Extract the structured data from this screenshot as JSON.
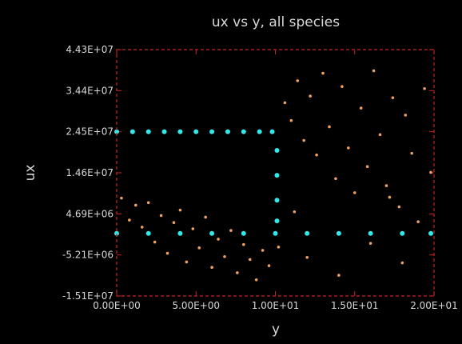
{
  "chart_data": {
    "type": "scatter",
    "title": "ux vs y, all species",
    "xlabel": "y",
    "ylabel": "ux",
    "xlim": [
      0,
      20.0
    ],
    "ylim": [
      -15100000,
      44300000
    ],
    "x_tick_values": [
      0,
      5.0,
      10.0,
      15.0,
      20.0
    ],
    "x_tick_labels": [
      "0.00E+00",
      "5.00E+00",
      "1.00E+01",
      "1.50E+01",
      "2.00E+01"
    ],
    "y_tick_values": [
      -15100000,
      -5210000,
      4690000,
      14600000,
      24500000,
      34400000,
      44300000
    ],
    "y_tick_labels": [
      "-1.51E+07",
      "-5.21E+06",
      "4.69E+06",
      "1.46E+07",
      "2.45E+07",
      "3.44E+07",
      "4.43E+07"
    ],
    "grid": false,
    "frame_color": "#cc2222",
    "background": "#000000",
    "series": [
      {
        "color": "#f0a060",
        "points": [
          [
            0.3,
            8500000
          ],
          [
            0.8,
            3200000
          ],
          [
            1.2,
            6800000
          ],
          [
            1.6,
            1500000
          ],
          [
            2.0,
            7400000
          ],
          [
            2.4,
            -2100000
          ],
          [
            2.8,
            4300000
          ],
          [
            3.2,
            -4800000
          ],
          [
            3.6,
            2600000
          ],
          [
            4.0,
            5600000
          ],
          [
            4.4,
            -6900000
          ],
          [
            4.8,
            1100000
          ],
          [
            5.2,
            -3500000
          ],
          [
            5.6,
            3900000
          ],
          [
            6.0,
            -8200000
          ],
          [
            6.4,
            -1400000
          ],
          [
            6.8,
            -5600000
          ],
          [
            7.2,
            700000
          ],
          [
            7.6,
            -9500000
          ],
          [
            8.0,
            -2700000
          ],
          [
            8.4,
            -6300000
          ],
          [
            8.8,
            -11200000
          ],
          [
            9.2,
            -4100000
          ],
          [
            9.6,
            -7800000
          ],
          [
            10.2,
            -3300000
          ],
          [
            10.6,
            31500000
          ],
          [
            11.0,
            27200000
          ],
          [
            11.4,
            36800000
          ],
          [
            11.8,
            22400000
          ],
          [
            12.2,
            33100000
          ],
          [
            12.6,
            18900000
          ],
          [
            13.0,
            38600000
          ],
          [
            13.4,
            25700000
          ],
          [
            13.8,
            13200000
          ],
          [
            14.2,
            35400000
          ],
          [
            14.6,
            20600000
          ],
          [
            15.0,
            9800000
          ],
          [
            15.4,
            30200000
          ],
          [
            15.8,
            16100000
          ],
          [
            16.2,
            39200000
          ],
          [
            16.6,
            23800000
          ],
          [
            17.0,
            11500000
          ],
          [
            17.4,
            32700000
          ],
          [
            17.8,
            6400000
          ],
          [
            18.2,
            28500000
          ],
          [
            18.6,
            19300000
          ],
          [
            19.0,
            2800000
          ],
          [
            19.4,
            34900000
          ],
          [
            19.8,
            14700000
          ],
          [
            12.0,
            -5800000
          ],
          [
            14.0,
            -10100000
          ],
          [
            16.0,
            -2400000
          ],
          [
            18.0,
            -7100000
          ],
          [
            11.2,
            5200000
          ],
          [
            17.2,
            8700000
          ]
        ]
      },
      {
        "color": "#33e8e8",
        "points": [
          [
            0.0,
            24500000
          ],
          [
            1.0,
            24500000
          ],
          [
            2.0,
            24500000
          ],
          [
            3.0,
            24500000
          ],
          [
            4.0,
            24500000
          ],
          [
            5.0,
            24500000
          ],
          [
            6.0,
            24500000
          ],
          [
            7.0,
            24500000
          ],
          [
            8.0,
            24500000
          ],
          [
            9.0,
            24500000
          ],
          [
            9.8,
            24500000
          ],
          [
            10.1,
            20000000
          ],
          [
            10.1,
            14000000
          ],
          [
            10.1,
            8000000
          ],
          [
            10.1,
            3000000
          ],
          [
            0.0,
            0
          ],
          [
            2.0,
            0
          ],
          [
            4.0,
            0
          ],
          [
            6.0,
            0
          ],
          [
            8.0,
            0
          ],
          [
            10.0,
            0
          ],
          [
            12.0,
            0
          ],
          [
            14.0,
            0
          ],
          [
            16.0,
            0
          ],
          [
            18.0,
            0
          ],
          [
            19.8,
            0
          ]
        ]
      }
    ]
  }
}
